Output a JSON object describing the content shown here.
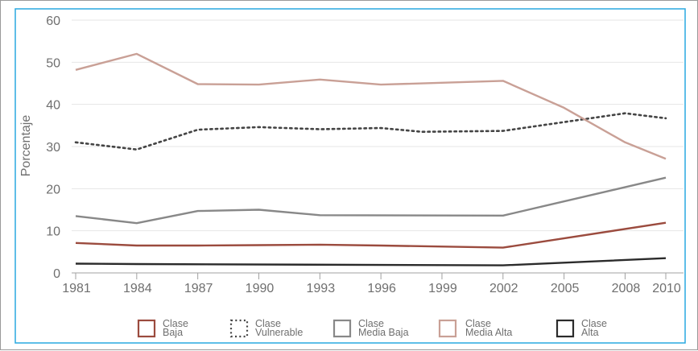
{
  "chart_data": {
    "type": "line",
    "title": "",
    "xlabel": "",
    "ylabel": "Porcentaje",
    "x": [
      "1981",
      "1984",
      "1987",
      "1990",
      "1993",
      "1996",
      "1999",
      "2002",
      "2005",
      "2008",
      "2010"
    ],
    "ylim": [
      0,
      60
    ],
    "yticks": [
      0,
      10,
      20,
      30,
      40,
      50,
      60
    ],
    "grid": true,
    "legend_position": "bottom",
    "series": [
      {
        "name": "Clase Baja",
        "legend_lines": [
          "Clase",
          "Baja"
        ],
        "color": "#9b4b3e",
        "style": "solid",
        "points": [
          [
            1981,
            7.1
          ],
          [
            1984,
            6.5
          ],
          [
            1987,
            6.5
          ],
          [
            1990,
            6.6
          ],
          [
            1993,
            6.7
          ],
          [
            1996,
            6.5
          ],
          [
            2002,
            6.0
          ],
          [
            2010,
            11.9
          ]
        ]
      },
      {
        "name": "Clase Vulnerable",
        "legend_lines": [
          "Clase",
          "Vulnerable"
        ],
        "color": "#444444",
        "style": "dotted",
        "points": [
          [
            1981,
            31.0
          ],
          [
            1984,
            29.3
          ],
          [
            1987,
            34.0
          ],
          [
            1990,
            34.6
          ],
          [
            1993,
            34.1
          ],
          [
            1996,
            34.4
          ],
          [
            1998,
            33.5
          ],
          [
            2002,
            33.7
          ],
          [
            2008,
            37.9
          ],
          [
            2010,
            36.7
          ]
        ]
      },
      {
        "name": "Clase Media Baja",
        "legend_lines": [
          "Clase",
          "Media Baja"
        ],
        "color": "#888888",
        "style": "solid",
        "points": [
          [
            1981,
            13.5
          ],
          [
            1984,
            11.8
          ],
          [
            1987,
            14.7
          ],
          [
            1990,
            15.0
          ],
          [
            1993,
            13.7
          ],
          [
            2002,
            13.6
          ],
          [
            2010,
            22.6
          ]
        ]
      },
      {
        "name": "Clase Media Alta",
        "legend_lines": [
          "Clase",
          "Media Alta"
        ],
        "color": "#c9a096",
        "style": "solid",
        "points": [
          [
            1981,
            48.2
          ],
          [
            1984,
            52.0
          ],
          [
            1987,
            44.8
          ],
          [
            1990,
            44.7
          ],
          [
            1993,
            45.9
          ],
          [
            1996,
            44.7
          ],
          [
            2002,
            45.6
          ],
          [
            2005,
            39.2
          ],
          [
            2008,
            31.0
          ],
          [
            2010,
            27.1
          ]
        ]
      },
      {
        "name": "Clase Alta",
        "legend_lines": [
          "Clase",
          "Alta"
        ],
        "color": "#2b2b2b",
        "style": "solid",
        "points": [
          [
            1981,
            2.2
          ],
          [
            1984,
            2.1
          ],
          [
            2002,
            1.8
          ],
          [
            2010,
            3.5
          ]
        ]
      }
    ]
  },
  "colors": {
    "plot_border": "#29a8e0",
    "grid": "#e6e6e6",
    "axis": "#a0a0a0"
  }
}
